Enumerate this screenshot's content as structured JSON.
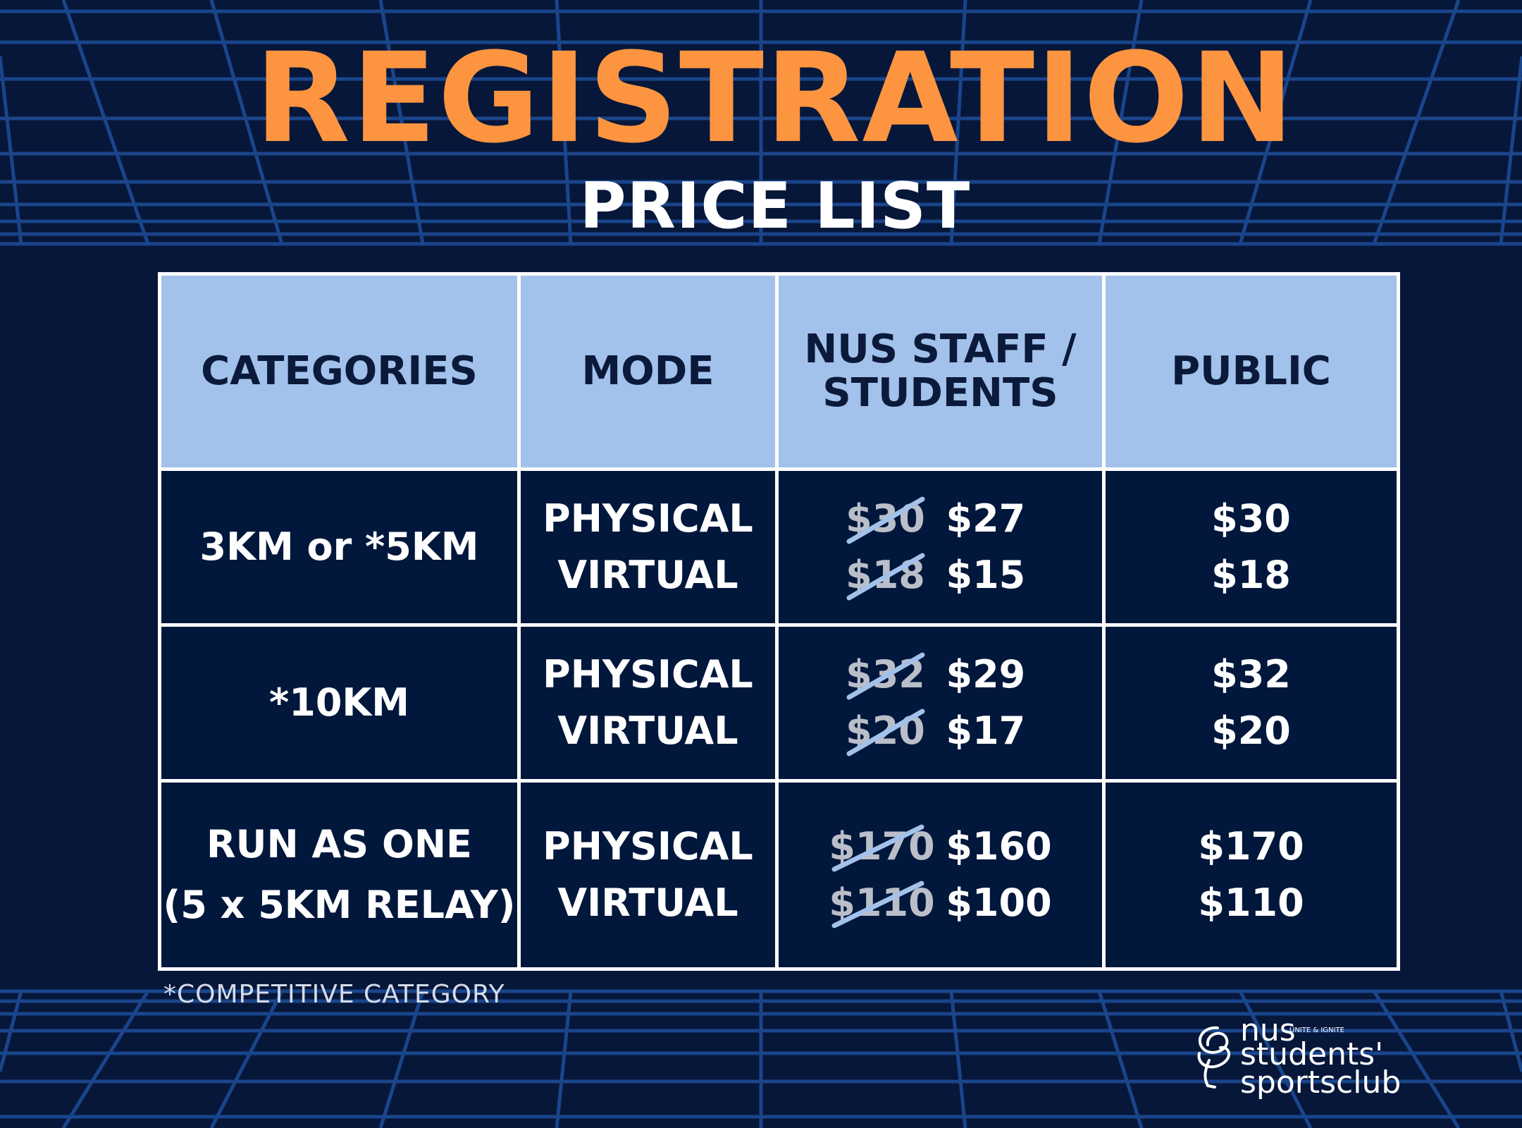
{
  "header": {
    "title": "REGISTRATION",
    "subtitle": "PRICE LIST"
  },
  "colors": {
    "background": "#07173a",
    "grid": "#1d4a94",
    "title": "#fd9440",
    "header_cell": "#a2c1eb",
    "body_cell": "#01173b",
    "strike": "#a2c1eb"
  },
  "table": {
    "headers": [
      "CATEGORIES",
      "MODE",
      "NUS STAFF / STUDENTS",
      "PUBLIC"
    ],
    "header_nus_lines": [
      "NUS STAFF /",
      "STUDENTS"
    ],
    "rows": [
      {
        "category_lines": [
          "3KM or *5KM"
        ],
        "modes": [
          "PHYSICAL",
          "VIRTUAL"
        ],
        "nus_prices": [
          {
            "original": "$30",
            "discounted": "$27"
          },
          {
            "original": "$18",
            "discounted": "$15"
          }
        ],
        "public_prices": [
          "$30",
          "$18"
        ]
      },
      {
        "category_lines": [
          "*10KM"
        ],
        "modes": [
          "PHYSICAL",
          "VIRTUAL"
        ],
        "nus_prices": [
          {
            "original": "$32",
            "discounted": "$29"
          },
          {
            "original": "$20",
            "discounted": "$17"
          }
        ],
        "public_prices": [
          "$32",
          "$20"
        ]
      },
      {
        "category_lines": [
          "RUN AS ONE",
          "(5 x 5KM RELAY)"
        ],
        "modes": [
          "PHYSICAL",
          "VIRTUAL"
        ],
        "nus_prices": [
          {
            "original": "$170",
            "discounted": "$160"
          },
          {
            "original": "$110",
            "discounted": "$100"
          }
        ],
        "public_prices": [
          "$170",
          "$110"
        ]
      }
    ]
  },
  "footnote": "*COMPETITIVE CATEGORY",
  "logo": {
    "nus": "nus",
    "tagline": "UNITE & IGNITE",
    "line1": "students'",
    "line2": "sportsclub"
  }
}
